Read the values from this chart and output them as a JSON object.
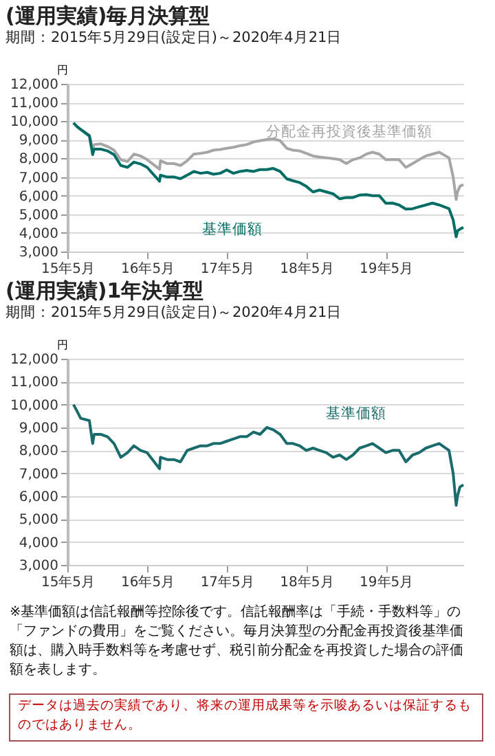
{
  "chart_data": [
    {
      "type": "line",
      "title": "(運用実績)毎月決算型",
      "subtitle": "期間：2015年5月29日(設定日)～2020年4月21日",
      "ylabel": "円",
      "x": [
        "2015-05-29",
        "2015-06-15",
        "2015-07",
        "2015-08-10",
        "2015-08-25",
        "2015-09",
        "2015-10",
        "2015-11",
        "2015-12",
        "2016-01",
        "2016-02",
        "2016-03",
        "2016-04",
        "2016-05",
        "2016-06-27",
        "2016-07",
        "2016-08",
        "2016-09",
        "2016-10",
        "2016-11",
        "2016-12",
        "2017-01",
        "2017-02",
        "2017-03",
        "2017-04",
        "2017-05",
        "2017-06",
        "2017-07",
        "2017-08",
        "2017-09",
        "2017-10",
        "2017-11",
        "2017-12",
        "2018-01",
        "2018-02",
        "2018-03",
        "2018-04",
        "2018-05",
        "2018-06",
        "2018-07",
        "2018-08",
        "2018-09",
        "2018-10",
        "2018-11",
        "2018-12",
        "2019-01",
        "2019-02",
        "2019-03",
        "2019-04",
        "2019-05",
        "2019-06",
        "2019-07",
        "2019-08",
        "2019-09",
        "2019-10",
        "2019-11",
        "2019-12",
        "2020-01",
        "2020-02-15",
        "2020-03-05",
        "2020-03-19",
        "2020-03-25",
        "2020-04-05",
        "2020-04-21"
      ],
      "series": [
        {
          "name": "分配金再投資後基準価額",
          "color": "#a6a6a6",
          "values": [
            9900,
            9700,
            9560,
            9250,
            8500,
            8740,
            8780,
            8640,
            8440,
            7930,
            7830,
            8230,
            8130,
            7930,
            7420,
            7870,
            7720,
            7720,
            7620,
            7870,
            8230,
            8270,
            8330,
            8440,
            8480,
            8540,
            8600,
            8680,
            8740,
            8880,
            8950,
            9010,
            9050,
            8950,
            8540,
            8440,
            8400,
            8270,
            8130,
            8070,
            8030,
            7990,
            7930,
            7720,
            7930,
            8030,
            8230,
            8330,
            8230,
            7930,
            7930,
            7930,
            7520,
            7720,
            7930,
            8130,
            8230,
            8330,
            8030,
            7010,
            5790,
            6200,
            6500,
            6600
          ]
        },
        {
          "name": "基準価額",
          "color": "#006d65",
          "values": [
            9900,
            9700,
            9550,
            9200,
            8200,
            8500,
            8500,
            8400,
            8200,
            7620,
            7520,
            7800,
            7700,
            7520,
            6770,
            7100,
            7000,
            7000,
            6910,
            7100,
            7300,
            7200,
            7250,
            7150,
            7200,
            7380,
            7200,
            7300,
            7350,
            7300,
            7400,
            7400,
            7460,
            7300,
            6900,
            6800,
            6700,
            6500,
            6200,
            6300,
            6200,
            6100,
            5830,
            5900,
            5900,
            6030,
            6050,
            6000,
            6000,
            5590,
            5600,
            5500,
            5280,
            5300,
            5400,
            5500,
            5600,
            5500,
            5300,
            4700,
            3790,
            4100,
            4200,
            4300
          ]
        }
      ],
      "xlim": [
        "2015-05",
        "2020-04-21"
      ],
      "xticks": [
        {
          "value": "2015-05",
          "label": "15年5月"
        },
        {
          "value": "2016-05",
          "label": "16年5月"
        },
        {
          "value": "2017-05",
          "label": "17年5月"
        },
        {
          "value": "2018-05",
          "label": "18年5月"
        },
        {
          "value": "2019-05",
          "label": "19年5月"
        }
      ],
      "ylim": [
        3000,
        12000
      ],
      "yticks": [
        {
          "value": 3000,
          "label": "3,000"
        },
        {
          "value": 4000,
          "label": "4,000"
        },
        {
          "value": 5000,
          "label": "5,000"
        },
        {
          "value": 6000,
          "label": "6,000"
        },
        {
          "value": 7000,
          "label": "7,000"
        },
        {
          "value": 8000,
          "label": "8,000"
        },
        {
          "value": 9000,
          "label": "9,000"
        },
        {
          "value": 10000,
          "label": "10,000"
        },
        {
          "value": 11000,
          "label": "11,000"
        },
        {
          "value": 12000,
          "label": "12,000"
        }
      ],
      "grid": "y",
      "legend": false,
      "marker": "none",
      "line_style": "solid"
    },
    {
      "type": "line",
      "title": "(運用実績)1年決算型",
      "subtitle": "期間：2015年5月29日(設定日)～2020年4月21日",
      "ylabel": "円",
      "x": [
        "2015-05-29",
        "2015-06-15",
        "2015-07",
        "2015-08-10",
        "2015-08-25",
        "2015-09",
        "2015-10",
        "2015-11",
        "2015-12",
        "2016-01",
        "2016-02",
        "2016-03",
        "2016-04",
        "2016-05",
        "2016-06-27",
        "2016-07",
        "2016-08",
        "2016-09",
        "2016-10",
        "2016-11",
        "2016-12",
        "2017-01",
        "2017-02",
        "2017-03",
        "2017-04",
        "2017-05",
        "2017-06",
        "2017-07",
        "2017-08",
        "2017-09",
        "2017-10",
        "2017-11",
        "2017-12",
        "2018-01",
        "2018-02",
        "2018-03",
        "2018-04",
        "2018-05",
        "2018-06",
        "2018-07",
        "2018-08",
        "2018-09",
        "2018-10",
        "2018-11",
        "2018-12",
        "2019-01",
        "2019-02",
        "2019-03",
        "2019-04",
        "2019-05",
        "2019-06",
        "2019-07",
        "2019-08",
        "2019-09",
        "2019-10",
        "2019-11",
        "2019-12",
        "2020-01",
        "2020-02-15",
        "2020-03-05",
        "2020-03-19",
        "2020-03-25",
        "2020-04-05",
        "2020-04-21"
      ],
      "series": [
        {
          "name": "基準価額",
          "color": "#1a6b6b",
          "values": [
            10000,
            9700,
            9400,
            9300,
            8300,
            8700,
            8700,
            8600,
            8300,
            7700,
            7900,
            8200,
            8000,
            7900,
            7200,
            7700,
            7600,
            7600,
            7500,
            8000,
            8100,
            8200,
            8200,
            8300,
            8300,
            8400,
            8500,
            8600,
            8600,
            8800,
            8700,
            9000,
            8900,
            8700,
            8300,
            8300,
            8200,
            8000,
            8100,
            8000,
            7900,
            7700,
            7800,
            7600,
            7800,
            8100,
            8200,
            8300,
            8100,
            7900,
            8000,
            8000,
            7500,
            7800,
            7900,
            8100,
            8200,
            8300,
            8000,
            7000,
            5600,
            6000,
            6400,
            6500
          ]
        }
      ],
      "xlim": [
        "2015-05",
        "2020-04-21"
      ],
      "xticks": [
        {
          "value": "2015-05",
          "label": "15年5月"
        },
        {
          "value": "2016-05",
          "label": "16年5月"
        },
        {
          "value": "2017-05",
          "label": "17年5月"
        },
        {
          "value": "2018-05",
          "label": "18年5月"
        },
        {
          "value": "2019-05",
          "label": "19年5月"
        }
      ],
      "ylim": [
        3000,
        12000
      ],
      "yticks": [
        {
          "value": 3000,
          "label": "3,000"
        },
        {
          "value": 4000,
          "label": "4,000"
        },
        {
          "value": 5000,
          "label": "5,000"
        },
        {
          "value": 6000,
          "label": "6,000"
        },
        {
          "value": 7000,
          "label": "7,000"
        },
        {
          "value": 8000,
          "label": "8,000"
        },
        {
          "value": 9000,
          "label": "9,000"
        },
        {
          "value": 10000,
          "label": "10,000"
        },
        {
          "value": 11000,
          "label": "11,000"
        },
        {
          "value": 12000,
          "label": "12,000"
        }
      ],
      "grid": "y",
      "legend": false,
      "marker": "none",
      "line_style": "solid",
      "annotations": [
        "※基準価額は信託報酬等控除後です。信託報酬率は「手続・手数料等」の「ファンドの費用」をご覧ください。毎月決算型の分配金再投資後基準価額は、購入時手数料等を考慮せず、税引前分配金を再投資した場合の評価額を表します。",
        "データは過去の実績であり、将来の運用成果等を示唆あるいは保証するものではありません。"
      ]
    }
  ]
}
